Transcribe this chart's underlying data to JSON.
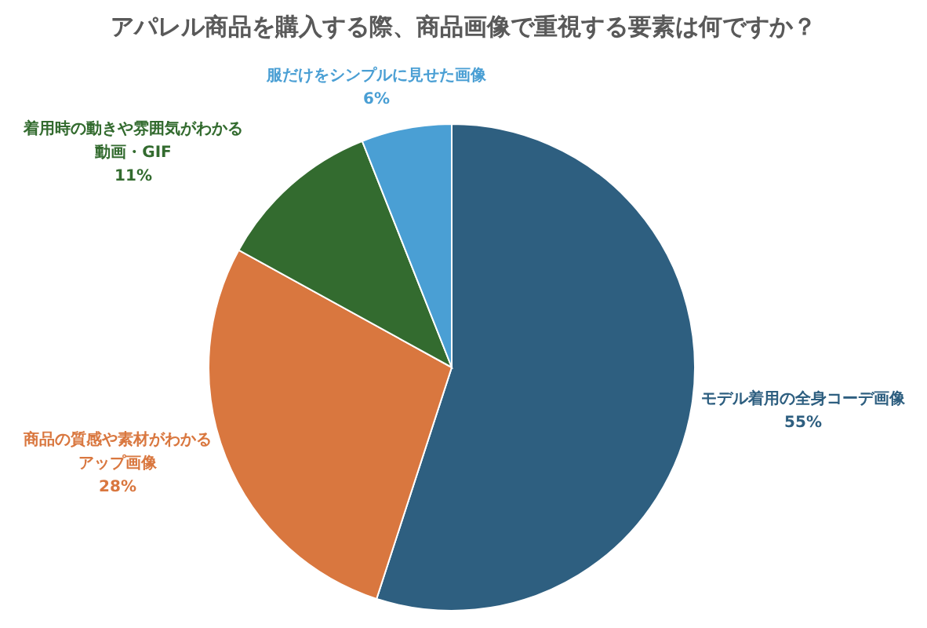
{
  "chart_data": {
    "type": "pie",
    "title": "アパレル商品を購入する際、商品画像で重視する要素は何ですか？",
    "categories": [
      "モデル着用の全身コーデ画像",
      "商品の質感や素材がわかるアップ画像",
      "着用時の動きや雰囲気がわかる動画・GIF",
      "服だけをシンプルに見せた画像"
    ],
    "values": [
      55,
      28,
      11,
      6
    ],
    "colors": [
      "#2e5f80",
      "#d9773f",
      "#336b2f",
      "#4a9fd4"
    ],
    "value_labels": [
      "55%",
      "28%",
      "11%",
      "6%"
    ]
  }
}
